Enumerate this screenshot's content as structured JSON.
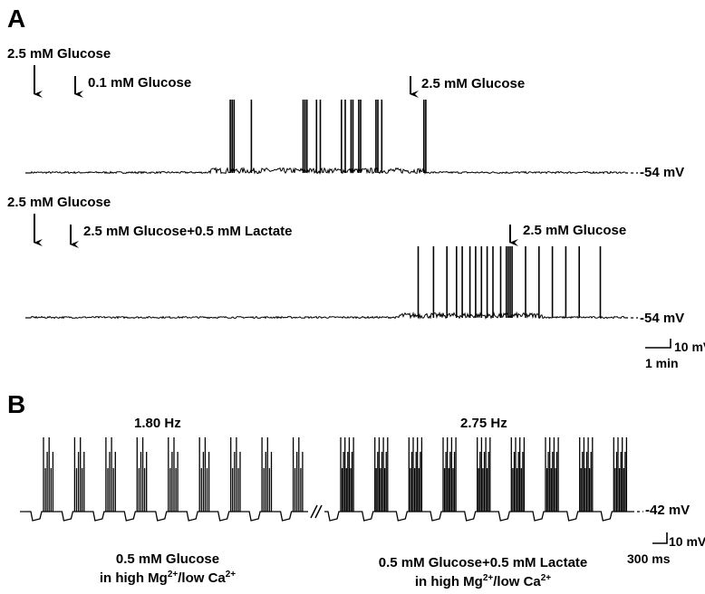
{
  "panel_a": {
    "letter": "A",
    "trace_1": {
      "markers": [
        "2.5 mM Glucose",
        "0.1 mM Glucose",
        "2.5 mM Glucose"
      ],
      "baseline": "-54 mV",
      "spike_times_min": [
        5.2,
        5.25,
        5.3,
        5.75,
        7.1,
        7.15,
        7.2,
        7.45,
        7.55,
        8.1,
        8.2,
        8.35,
        8.4,
        8.55,
        8.6,
        9.0,
        9.05,
        9.15,
        10.25,
        10.3
      ]
    },
    "trace_2": {
      "markers": [
        "2.5 mM Glucose",
        "2.5 mM Glucose+0.5 mM Lactate",
        "2.5 mM Glucose"
      ],
      "baseline": "-54 mV",
      "spike_times_min": [
        10.1,
        10.5,
        10.85,
        11.1,
        11.25,
        11.45,
        11.6,
        11.75,
        11.9,
        12.05,
        12.25,
        12.4,
        12.45,
        12.5,
        12.55,
        12.9,
        13.25,
        13.6,
        13.95,
        14.3,
        14.85
      ]
    },
    "scale": {
      "voltage": "10 mV",
      "time": "1 min"
    }
  },
  "panel_b": {
    "letter": "B",
    "left": {
      "rate": "1.80 Hz",
      "condition_line1": "0.5 mM Glucose",
      "condition_line2_pre": "in high Mg",
      "condition_line2_sup1": "2+",
      "condition_line2_mid": "/low Ca",
      "condition_line2_sup2": "2+"
    },
    "right": {
      "rate": "2.75 Hz",
      "condition_line1": "0.5 mM Glucose+0.5 mM Lactate",
      "condition_line2_pre": "in high Mg",
      "condition_line2_sup1": "2+",
      "condition_line2_mid": "/low Ca",
      "condition_line2_sup2": "2+"
    },
    "baseline": "-42 mV",
    "scale": {
      "voltage": "10 mV",
      "time": "300 ms"
    }
  }
}
